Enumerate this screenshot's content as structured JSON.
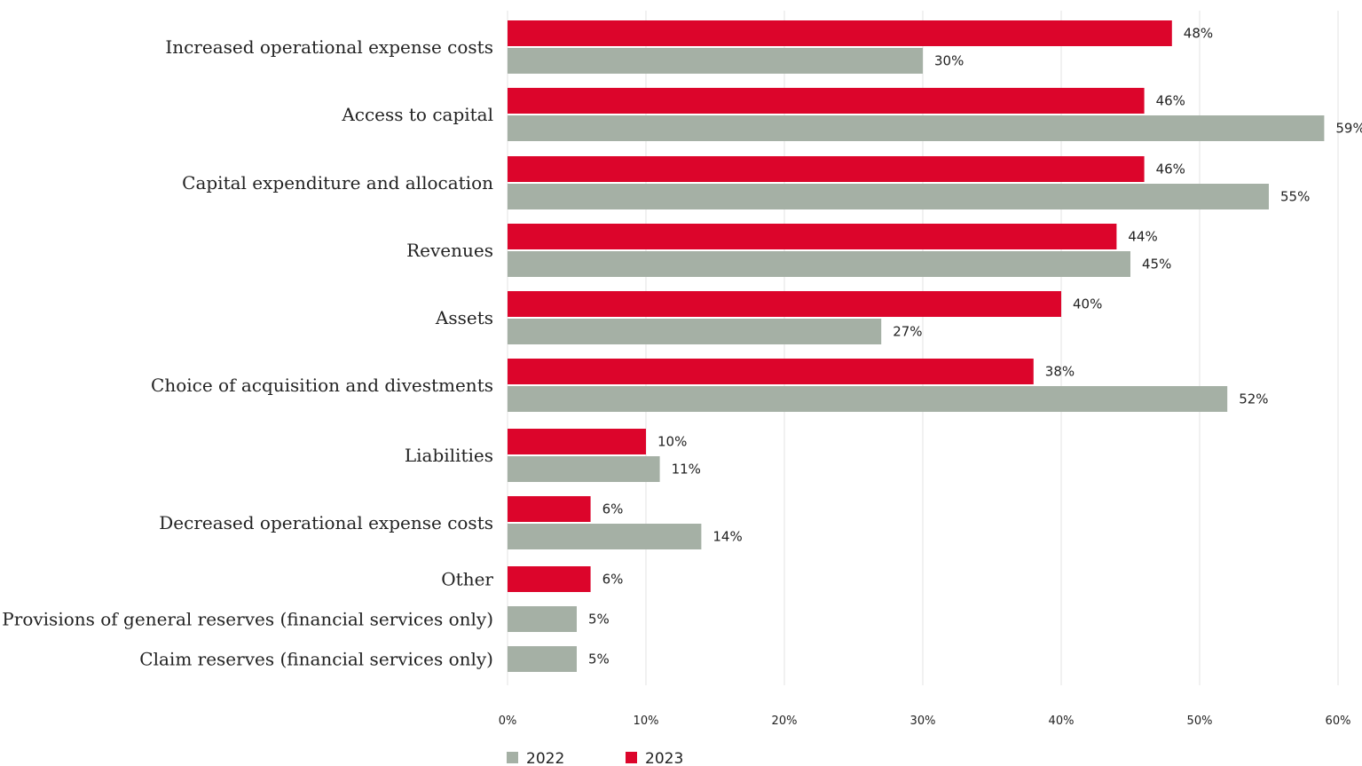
{
  "chart_data": {
    "type": "bar",
    "orientation": "horizontal",
    "title": "",
    "xlabel": "",
    "ylabel": "",
    "xlim": [
      0,
      60
    ],
    "x_ticks": [
      "0%",
      "10%",
      "20%",
      "30%",
      "40%",
      "50%",
      "60%"
    ],
    "grid": "vertical",
    "legend_position": "bottom",
    "value_suffix": "%",
    "categories": [
      "Increased operational expense costs",
      "Access to capital",
      "Capital expenditure and allocation",
      "Revenues",
      "Assets",
      "Choice of acquisition and divestments",
      "Liabilities",
      "Decreased operational expense costs",
      "Other",
      "Provisions of general reserves (financial services only)",
      "Claim reserves (financial services only)"
    ],
    "series": [
      {
        "name": "2023",
        "color": "#dc052b",
        "values": [
          48,
          46,
          46,
          44,
          40,
          38,
          10,
          6,
          6,
          null,
          null
        ],
        "labels": [
          "48%",
          "46%",
          "46%",
          "44%",
          "40%",
          "38%",
          "10%",
          "6%",
          "6%",
          null,
          null
        ]
      },
      {
        "name": "2022",
        "color": "#a5b0a5",
        "values": [
          30,
          59,
          55,
          45,
          27,
          52,
          11,
          14,
          null,
          5,
          5
        ],
        "labels": [
          "30%",
          "59%",
          "55%",
          "45%",
          "27%",
          "52%",
          "11%",
          "14%",
          null,
          "5%",
          "5%"
        ]
      }
    ],
    "legend": [
      {
        "name": "2022",
        "color": "#a5b0a5"
      },
      {
        "name": "2023",
        "color": "#dc052b"
      }
    ]
  }
}
